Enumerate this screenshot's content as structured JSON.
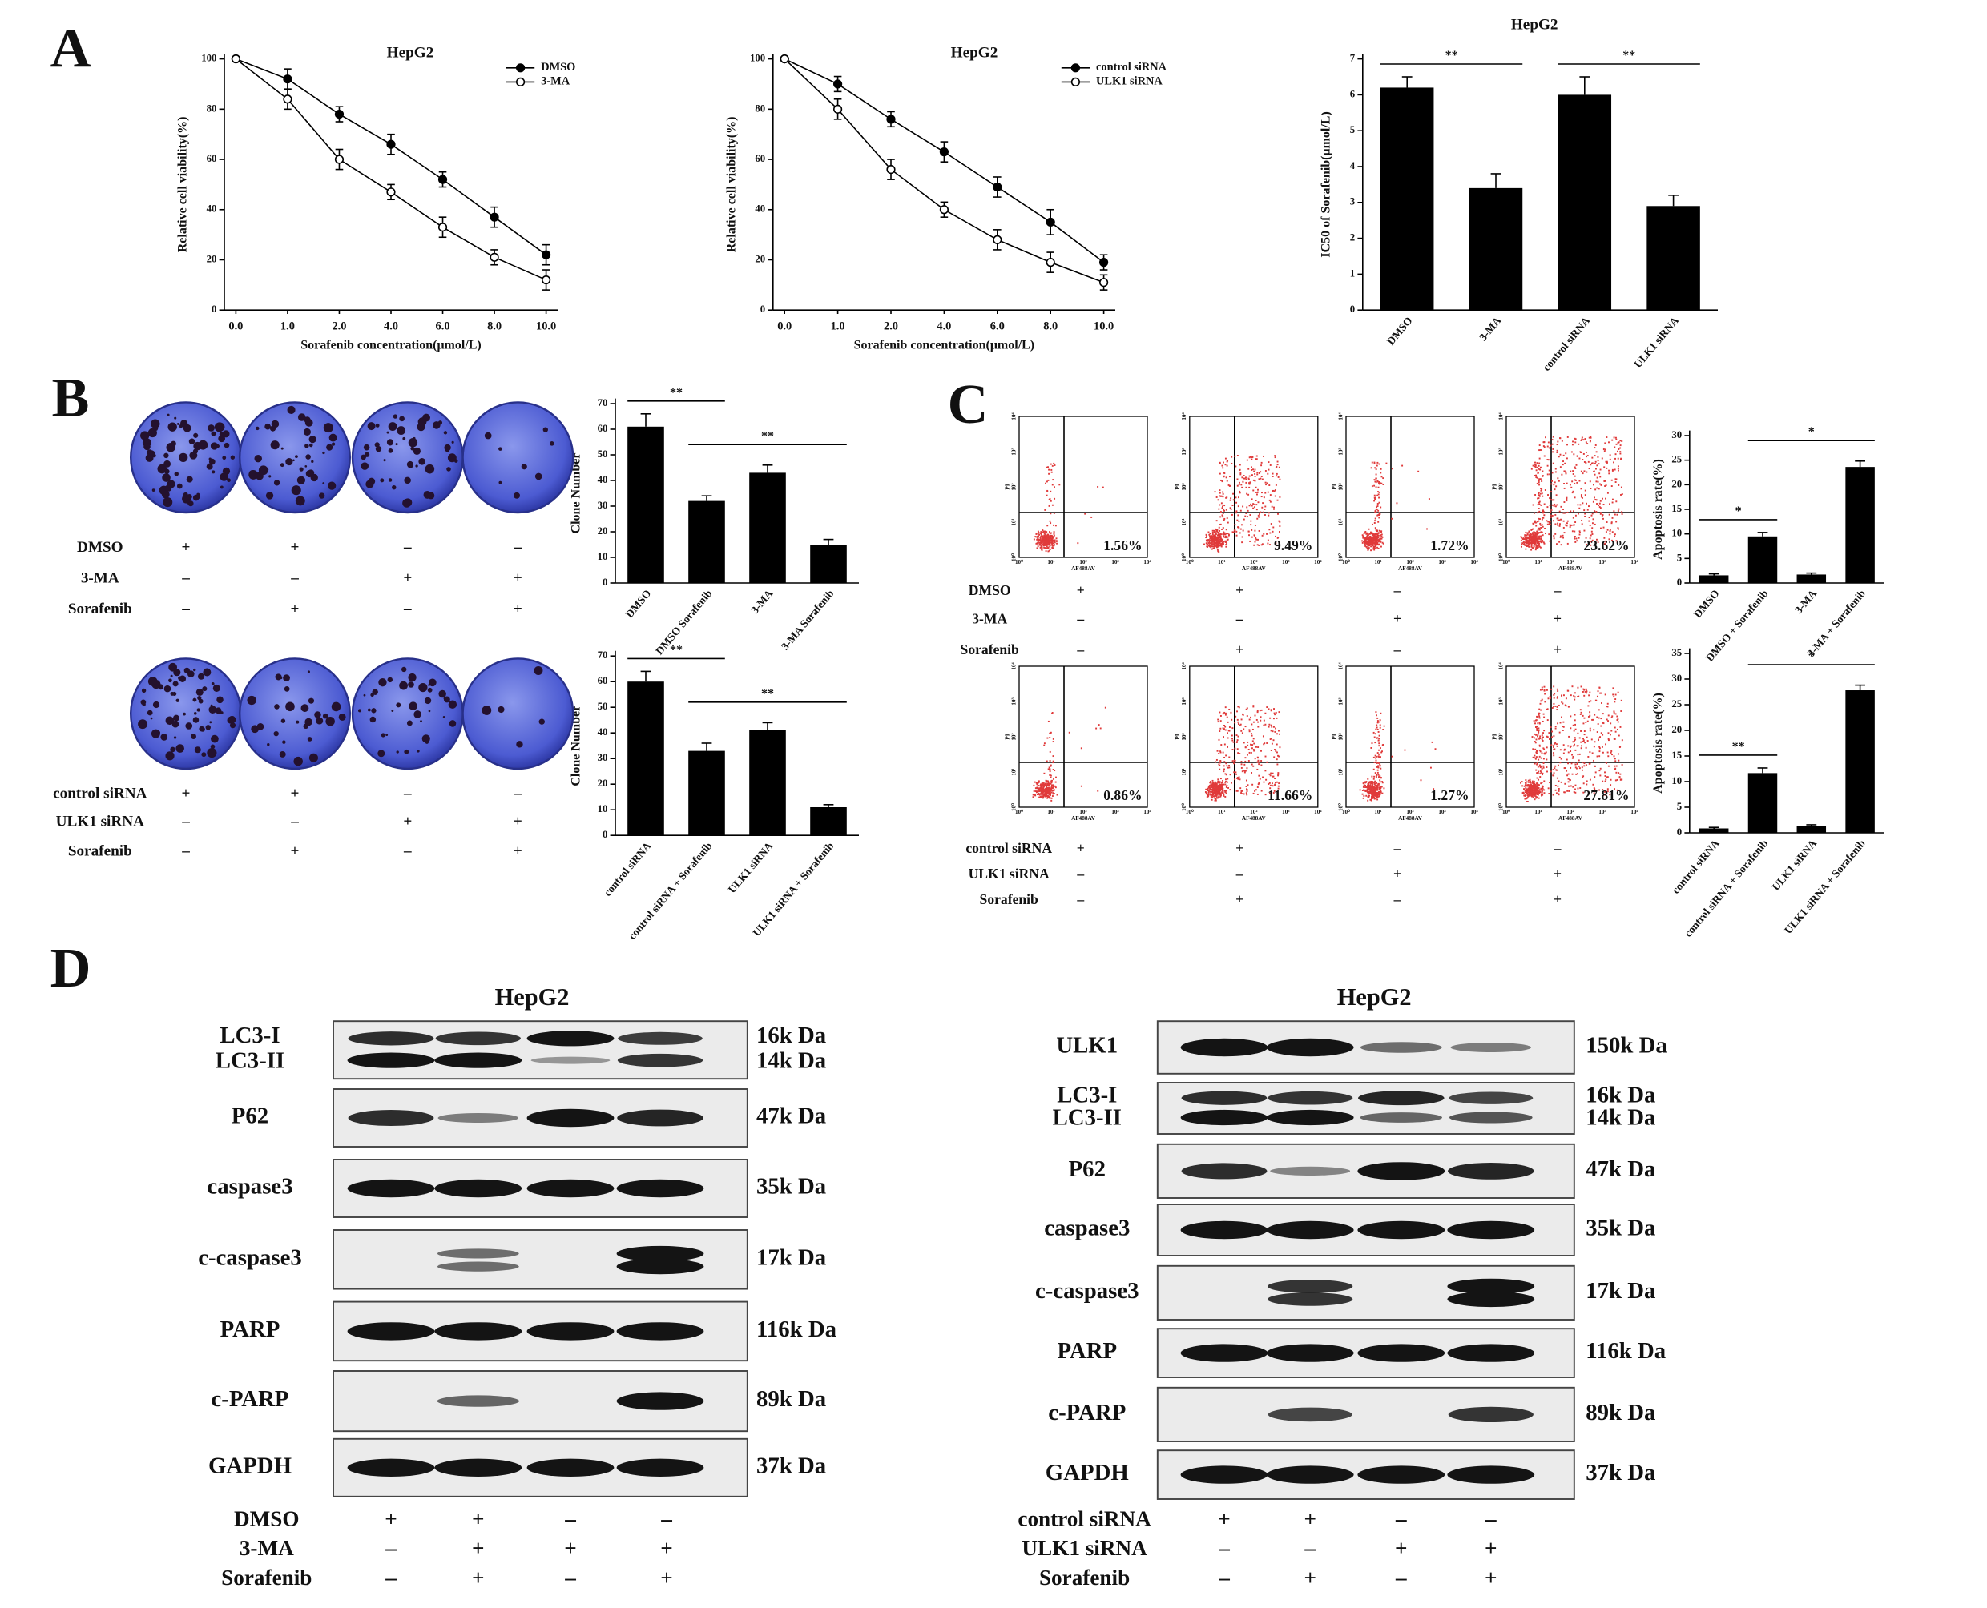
{
  "panel_labels": [
    "A",
    "B",
    "C",
    "D"
  ],
  "chart_data": [
    {
      "type": "line",
      "title": "HepG2",
      "x_label": "Sorafenib concentration(μmol/L)",
      "y_label": "Relative cell viability(%)",
      "categories": [
        "0.0",
        "1.0",
        "2.0",
        "4.0",
        "6.0",
        "8.0",
        "10.0"
      ],
      "series": [
        {
          "name": "DMSO",
          "color": "#000000",
          "marker_fill": "#000000",
          "values": [
            100,
            92,
            78,
            66,
            52,
            37,
            22
          ],
          "errors": [
            0,
            4,
            3,
            4,
            3,
            4,
            4
          ]
        },
        {
          "name": "3-MA",
          "color": "#000000",
          "marker_fill": "#ffffff",
          "values": [
            100,
            84,
            60,
            47,
            33,
            21,
            12
          ],
          "errors": [
            0,
            4,
            4,
            3,
            4,
            3,
            4
          ]
        }
      ],
      "ylim": [
        0,
        100
      ],
      "yticks": [
        0,
        20,
        40,
        60,
        80,
        100
      ]
    },
    {
      "type": "line",
      "title": "HepG2",
      "x_label": "Sorafenib concentration(μmol/L)",
      "y_label": "Relative cell viability(%)",
      "categories": [
        "0.0",
        "1.0",
        "2.0",
        "4.0",
        "6.0",
        "8.0",
        "10.0"
      ],
      "series": [
        {
          "name": "control siRNA",
          "color": "#000000",
          "marker_fill": "#000000",
          "values": [
            100,
            90,
            76,
            63,
            49,
            35,
            19
          ],
          "errors": [
            0,
            3,
            3,
            4,
            4,
            5,
            3
          ]
        },
        {
          "name": "ULK1 siRNA",
          "color": "#000000",
          "marker_fill": "#ffffff",
          "values": [
            100,
            80,
            56,
            40,
            28,
            19,
            11
          ],
          "errors": [
            0,
            4,
            4,
            3,
            4,
            4,
            3
          ]
        }
      ],
      "ylim": [
        0,
        100
      ],
      "yticks": [
        0,
        20,
        40,
        60,
        80,
        100
      ]
    },
    {
      "type": "bar",
      "title": "HepG2",
      "y_label": "IC50 of Sorafenib(μmol/L)",
      "categories": [
        "DMSO",
        "3-MA",
        "control siRNA",
        "ULK1 siRNA"
      ],
      "values": [
        6.2,
        3.4,
        6.0,
        2.9
      ],
      "errors": [
        0.3,
        0.4,
        0.5,
        0.3
      ],
      "color": "#000000",
      "ylim": [
        0,
        7
      ],
      "yticks": [
        0,
        1,
        2,
        3,
        4,
        5,
        6,
        7
      ],
      "significance": [
        {
          "label": "**",
          "groups": [
            "DMSO",
            "3-MA"
          ]
        },
        {
          "label": "**",
          "groups": [
            "control siRNA",
            "ULK1 siRNA"
          ]
        }
      ]
    },
    {
      "type": "bar",
      "y_label": "Clone Number",
      "categories": [
        "DMSO",
        "DMSO Sorafenib",
        "3-MA",
        "3-MA Sorafenib"
      ],
      "values": [
        61,
        32,
        43,
        15
      ],
      "errors": [
        5,
        2,
        3,
        2
      ],
      "color": "#000000",
      "ylim": [
        0,
        70
      ],
      "yticks": [
        0,
        10,
        20,
        30,
        40,
        50,
        60,
        70
      ],
      "significance": [
        {
          "label": "**",
          "groups": [
            "DMSO",
            "DMSO Sorafenib"
          ]
        },
        {
          "label": "**",
          "groups": [
            "DMSO Sorafenib",
            "3-MA Sorafenib"
          ]
        }
      ]
    },
    {
      "type": "bar",
      "y_label": "Clone Number",
      "categories": [
        "control siRNA",
        "control siRNA + Sorafenib",
        "ULK1 siRNA",
        "ULK1 siRNA + Sorafenib"
      ],
      "values": [
        60,
        33,
        41,
        11
      ],
      "errors": [
        4,
        3,
        3,
        1
      ],
      "color": "#000000",
      "ylim": [
        0,
        70
      ],
      "yticks": [
        0,
        10,
        20,
        30,
        40,
        50,
        60,
        70
      ],
      "significance": [
        {
          "label": "**",
          "groups": [
            "control siRNA",
            "control siRNA + Sorafenib"
          ]
        },
        {
          "label": "**",
          "groups": [
            "control siRNA + Sorafenib",
            "ULK1 siRNA + Sorafenib"
          ]
        }
      ]
    },
    {
      "type": "bar",
      "y_label": "Apoptosis rate(%)",
      "categories": [
        "DMSO",
        "DMSO + Sorafenib",
        "3-MA",
        "3-MA + Sorafenib"
      ],
      "values": [
        1.56,
        9.49,
        1.72,
        23.62
      ],
      "errors": [
        0.3,
        0.8,
        0.3,
        1.2
      ],
      "color": "#000000",
      "ylim": [
        0,
        30
      ],
      "yticks": [
        0,
        5,
        10,
        15,
        20,
        25,
        30
      ],
      "significance": [
        {
          "label": "*",
          "groups": [
            "DMSO",
            "DMSO + Sorafenib"
          ]
        },
        {
          "label": "*",
          "groups": [
            "DMSO + Sorafenib",
            "3-MA + Sorafenib"
          ]
        }
      ]
    },
    {
      "type": "bar",
      "y_label": "Apoptosis rate(%)",
      "categories": [
        "control siRNA",
        "control siRNA + Sorafenib",
        "ULK1 siRNA",
        "ULK1 siRNA + Sorafenib"
      ],
      "values": [
        0.86,
        11.66,
        1.27,
        27.81
      ],
      "errors": [
        0.2,
        1.0,
        0.3,
        1.0
      ],
      "color": "#000000",
      "ylim": [
        0,
        35
      ],
      "yticks": [
        0,
        5,
        10,
        15,
        20,
        25,
        30,
        35
      ],
      "significance": [
        {
          "label": "**",
          "groups": [
            "control siRNA",
            "control siRNA + Sorafenib"
          ]
        },
        {
          "label": "*",
          "groups": [
            "control siRNA + Sorafenib",
            "ULK1 siRNA + Sorafenib"
          ]
        }
      ]
    }
  ],
  "flow": {
    "x_label": "AF488AV",
    "y_label": "PI",
    "ticks": [
      "10⁰",
      "10¹",
      "10²",
      "10³",
      "10⁴"
    ],
    "rows": [
      [
        "1.56%",
        "9.49%",
        "1.72%",
        "23.62%"
      ],
      [
        "0.86%",
        "11.66%",
        "1.27%",
        "27.81%"
      ]
    ]
  },
  "treatments": [
    {
      "rows": [
        {
          "label": "DMSO",
          "marks": [
            "+",
            "+",
            "–",
            "–"
          ]
        },
        {
          "label": "3-MA",
          "marks": [
            "–",
            "–",
            "+",
            "+"
          ]
        },
        {
          "label": "Sorafenib",
          "marks": [
            "–",
            "+",
            "–",
            "+"
          ]
        }
      ]
    },
    {
      "rows": [
        {
          "label": "control siRNA",
          "marks": [
            "+",
            "+",
            "–",
            "–"
          ]
        },
        {
          "label": "ULK1 siRNA",
          "marks": [
            "–",
            "–",
            "+",
            "+"
          ]
        },
        {
          "label": "Sorafenib",
          "marks": [
            "–",
            "+",
            "–",
            "+"
          ]
        }
      ]
    },
    {
      "rows": [
        {
          "label": "DMSO",
          "marks": [
            "+",
            "+",
            "–",
            "–"
          ]
        },
        {
          "label": "3-MA",
          "marks": [
            "–",
            "–",
            "+",
            "+"
          ]
        },
        {
          "label": "Sorafenib",
          "marks": [
            "–",
            "+",
            "–",
            "+"
          ]
        }
      ]
    },
    {
      "rows": [
        {
          "label": "control siRNA",
          "marks": [
            "+",
            "+",
            "–",
            "–"
          ]
        },
        {
          "label": "ULK1 siRNA",
          "marks": [
            "–",
            "–",
            "+",
            "+"
          ]
        },
        {
          "label": "Sorafenib",
          "marks": [
            "–",
            "+",
            "–",
            "+"
          ]
        }
      ]
    },
    {
      "rows": [
        {
          "label": "DMSO",
          "marks": [
            "+",
            "+",
            "–",
            "–"
          ]
        },
        {
          "label": "3-MA",
          "marks": [
            "–",
            "+",
            "+",
            "+"
          ]
        },
        {
          "label": "Sorafenib",
          "marks": [
            "–",
            "+",
            "–",
            "+"
          ]
        }
      ]
    },
    {
      "rows": [
        {
          "label": "control siRNA",
          "marks": [
            "+",
            "+",
            "–",
            "–"
          ]
        },
        {
          "label": "ULK1 siRNA",
          "marks": [
            "–",
            "–",
            "+",
            "+"
          ]
        },
        {
          "label": "Sorafenib",
          "marks": [
            "–",
            "+",
            "–",
            "+"
          ]
        }
      ]
    }
  ],
  "blots": [
    {
      "title": "HepG2",
      "proteins": [
        {
          "names": [
            "LC3-I",
            "LC3-II"
          ],
          "sizes": [
            "16k Da",
            "14k Da"
          ]
        },
        {
          "names": [
            "P62"
          ],
          "sizes": [
            "47k Da"
          ]
        },
        {
          "names": [
            "caspase3"
          ],
          "sizes": [
            "35k Da"
          ]
        },
        {
          "names": [
            "c-caspase3"
          ],
          "sizes": [
            "17k Da"
          ]
        },
        {
          "names": [
            "PARP"
          ],
          "sizes": [
            "116k Da"
          ]
        },
        {
          "names": [
            "c-PARP"
          ],
          "sizes": [
            "89k Da"
          ]
        },
        {
          "names": [
            "GAPDH"
          ],
          "sizes": [
            "37k Da"
          ]
        }
      ]
    },
    {
      "title": "HepG2",
      "proteins": [
        {
          "names": [
            "ULK1"
          ],
          "sizes": [
            "150k Da"
          ]
        },
        {
          "names": [
            "LC3-I",
            "LC3-II"
          ],
          "sizes": [
            "16k Da",
            "14k Da"
          ]
        },
        {
          "names": [
            "P62"
          ],
          "sizes": [
            "47k Da"
          ]
        },
        {
          "names": [
            "caspase3"
          ],
          "sizes": [
            "35k Da"
          ]
        },
        {
          "names": [
            "c-caspase3"
          ],
          "sizes": [
            "17k Da"
          ]
        },
        {
          "names": [
            "PARP"
          ],
          "sizes": [
            "116k Da"
          ]
        },
        {
          "names": [
            "c-PARP"
          ],
          "sizes": [
            "89k Da"
          ]
        },
        {
          "names": [
            "GAPDH"
          ],
          "sizes": [
            "37k Da"
          ]
        }
      ]
    }
  ]
}
